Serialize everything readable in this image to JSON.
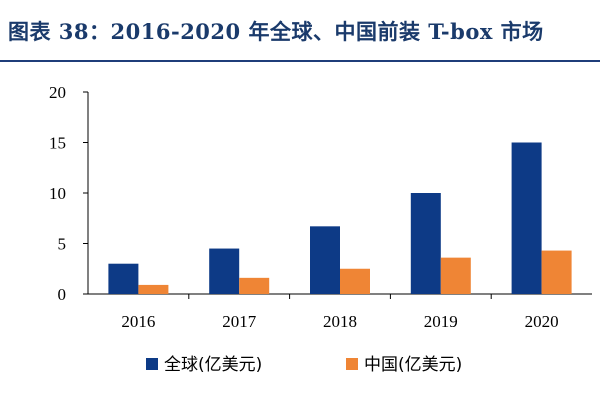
{
  "figure": {
    "title": "图表 38：2016-2020 年全球、中国前装 T-box 市场"
  },
  "colors": {
    "title": "#1a3a6b",
    "rule": "#1f3d7a",
    "global": "#0d3a86",
    "china": "#ef8535"
  },
  "chart_data": {
    "type": "bar",
    "categories": [
      "2016",
      "2017",
      "2018",
      "2019",
      "2020"
    ],
    "series": [
      {
        "name": "全球(亿美元)",
        "values": [
          3.0,
          4.5,
          6.7,
          10.0,
          15.0
        ]
      },
      {
        "name": "中国(亿美元)",
        "values": [
          0.9,
          1.6,
          2.5,
          3.6,
          4.3
        ]
      }
    ],
    "ylim": [
      0,
      20
    ],
    "yticks": [
      0,
      5,
      10,
      15,
      20
    ],
    "grid": false,
    "legend": "bottom"
  }
}
